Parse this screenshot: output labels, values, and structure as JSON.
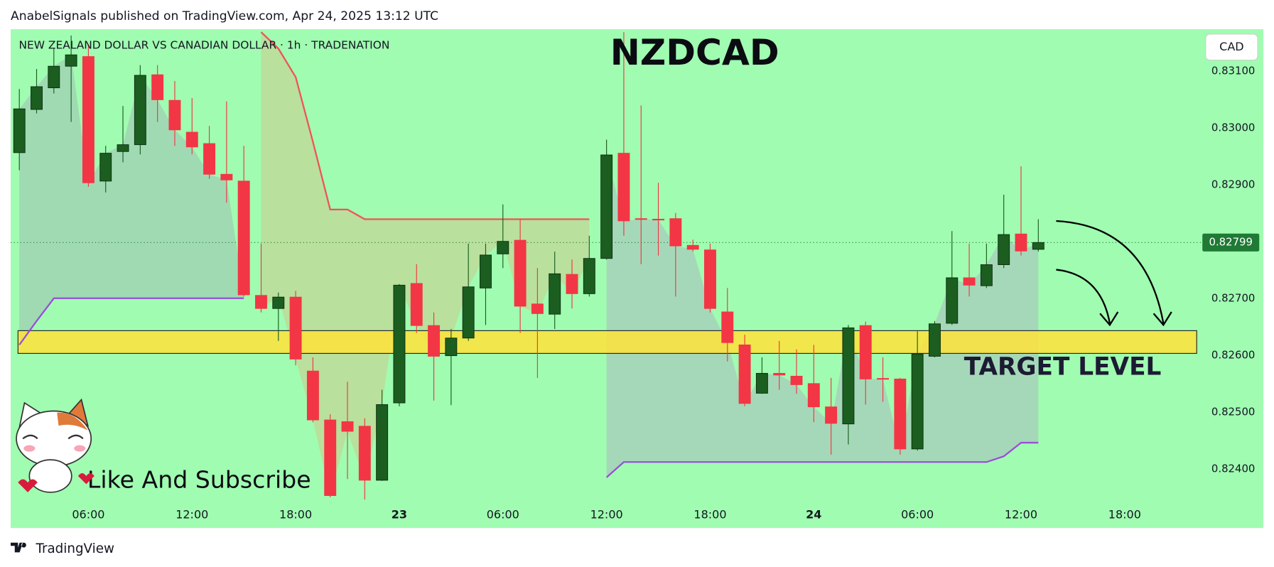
{
  "header": "AnabelSignals published on TradingView.com, Apr 24, 2025 13:12 UTC",
  "footer": "TradingView",
  "chart_data": {
    "type": "candlestick",
    "title": "NZDCAD",
    "subtitle": "NEW ZEALAND DOLLAR VS CANADIAN DOLLAR · 1h · TRADENATION",
    "currency": "CAD",
    "target_label": "TARGET LEVEL",
    "promo": "Like And Subscribe",
    "categories": [
      null,
      null,
      null,
      null,
      "06:00",
      null,
      null,
      null,
      null,
      null,
      "12:00",
      null,
      null,
      null,
      null,
      null,
      "18:00",
      null,
      null,
      null,
      null,
      null,
      "23",
      null,
      null,
      null,
      null,
      null,
      "06:00",
      null,
      null,
      null,
      null,
      null,
      "12:00",
      null,
      null,
      null,
      null,
      null,
      "18:00",
      null,
      null,
      null,
      null,
      null,
      "24",
      null,
      null,
      null,
      null,
      null,
      "06:00",
      null,
      null,
      null,
      null,
      null,
      "12:00",
      null,
      null,
      null,
      null,
      null,
      "18:00",
      null,
      null,
      null,
      null
    ],
    "open": [
      0.82957,
      0.83033,
      0.83071,
      0.83109,
      0.83126,
      0.82907,
      0.82959,
      0.82971,
      0.83094,
      0.83049,
      0.82993,
      0.82973,
      0.82919,
      0.82907,
      0.82706,
      0.82683,
      0.82703,
      0.82573,
      0.82487,
      0.82484,
      0.82476,
      0.82381,
      0.82517,
      0.82727,
      0.82653,
      0.826,
      0.82631,
      0.82719,
      0.82779,
      0.82803,
      0.82691,
      0.82673,
      0.82743,
      0.82709,
      0.82771,
      0.82956,
      0.82841,
      0.8284,
      0.82841,
      0.82794,
      0.82786,
      0.82677,
      0.82619,
      0.82534,
      0.82569,
      0.82564,
      0.82551,
      0.8251,
      0.8248,
      0.82653,
      0.8256,
      0.82559,
      0.82436,
      0.82599,
      0.82657,
      0.82737,
      0.82723,
      0.8276,
      0.82814,
      0.82787,
      null,
      null,
      null,
      null,
      null,
      null,
      null,
      null,
      null
    ],
    "high": [
      0.83069,
      0.83104,
      0.8314,
      0.83163,
      0.83147,
      0.82969,
      0.83039,
      0.83111,
      0.83111,
      0.83083,
      0.83053,
      0.83004,
      0.83047,
      0.82969,
      0.82797,
      0.82711,
      0.82714,
      0.82597,
      0.82497,
      0.82554,
      0.8249,
      0.8254,
      0.82726,
      0.82761,
      0.82676,
      0.82647,
      0.82797,
      0.82797,
      0.82866,
      0.8284,
      0.82754,
      0.82783,
      0.82769,
      0.82811,
      0.8298,
      0.83169,
      0.8304,
      0.82904,
      0.82851,
      0.82804,
      0.82797,
      0.82719,
      0.82637,
      0.82597,
      0.82626,
      0.82611,
      0.82619,
      0.82561,
      0.82654,
      0.8266,
      0.82597,
      0.82561,
      0.82643,
      0.82661,
      0.82819,
      0.82797,
      0.82797,
      0.82883,
      0.82933,
      0.8284,
      null,
      null,
      null,
      null,
      null,
      null,
      null,
      null,
      null
    ],
    "low": [
      0.82926,
      0.83026,
      0.83061,
      0.83011,
      0.82897,
      0.82887,
      0.8294,
      0.82954,
      0.83011,
      0.82969,
      0.82954,
      0.82911,
      0.82869,
      0.82704,
      0.82676,
      0.82626,
      0.82583,
      0.82483,
      0.82351,
      0.82383,
      0.82347,
      0.8238,
      0.82511,
      0.8264,
      0.82521,
      0.82513,
      0.82626,
      0.82654,
      0.82754,
      0.8264,
      0.82561,
      0.82647,
      0.82683,
      0.82704,
      0.82769,
      0.82811,
      0.82761,
      0.82776,
      0.82704,
      0.82783,
      0.82676,
      0.8259,
      0.82511,
      0.82533,
      0.8254,
      0.82533,
      0.82483,
      0.82426,
      0.82444,
      0.82514,
      0.82519,
      0.82426,
      0.82433,
      0.82597,
      0.82654,
      0.82704,
      0.82719,
      0.82754,
      0.82776,
      0.82783,
      null,
      null,
      null,
      null,
      null,
      null,
      null,
      null,
      null
    ],
    "close": [
      0.83034,
      0.83073,
      0.83109,
      0.83129,
      0.82904,
      0.82956,
      0.82971,
      0.83093,
      0.8305,
      0.82997,
      0.82967,
      0.82919,
      0.82909,
      0.82707,
      0.82683,
      0.82703,
      0.82594,
      0.82487,
      0.82354,
      0.82467,
      0.82381,
      0.82514,
      0.82724,
      0.82653,
      0.82599,
      0.82631,
      0.82721,
      0.82777,
      0.82801,
      0.82687,
      0.82674,
      0.82744,
      0.82709,
      0.82771,
      0.82953,
      0.82837,
      0.8284,
      0.82839,
      0.82793,
      0.82787,
      0.82683,
      0.82623,
      0.82516,
      0.82569,
      0.82566,
      0.82549,
      0.8251,
      0.82481,
      0.82649,
      0.82559,
      0.82559,
      0.82436,
      0.82603,
      0.82656,
      0.82737,
      0.82724,
      0.8276,
      0.82813,
      0.82784,
      0.82799,
      null,
      null,
      null,
      null,
      null,
      null,
      null,
      null,
      null
    ],
    "up_color": "#1b5e20",
    "down_color": "#f23645",
    "lines": [
      {
        "color": "#f0525a",
        "values": [
          null,
          null,
          null,
          null,
          null,
          null,
          null,
          null,
          null,
          null,
          null,
          null,
          null,
          null,
          0.83169,
          0.8314,
          0.8309,
          0.82976,
          0.82857,
          0.82857,
          0.8284,
          0.8284,
          0.8284,
          0.8284,
          0.8284,
          0.8284,
          0.8284,
          0.8284,
          0.8284,
          0.8284,
          0.8284,
          0.8284,
          0.8284,
          0.8284,
          null,
          null,
          null,
          null,
          null,
          null,
          null,
          null,
          null,
          null,
          null,
          null,
          null,
          null,
          null,
          null,
          null,
          null,
          null,
          null,
          null,
          null,
          null,
          null,
          null,
          null,
          null,
          null,
          null,
          null,
          null,
          null,
          null,
          null,
          null
        ]
      },
      {
        "color": "#9b4dd8",
        "values": [
          0.82619,
          0.82661,
          0.82701,
          0.82701,
          0.82701,
          0.82701,
          0.82701,
          0.82701,
          0.82701,
          0.82701,
          0.82701,
          0.82701,
          0.82701,
          0.82701,
          null,
          null,
          null,
          null,
          null,
          null,
          null,
          null,
          null,
          null,
          null,
          null,
          null,
          null,
          null,
          null,
          null,
          null,
          null,
          null,
          0.82386,
          0.82413,
          0.82413,
          0.82413,
          0.82413,
          0.82413,
          0.82413,
          0.82413,
          0.82413,
          0.82413,
          0.82413,
          0.82413,
          0.82413,
          0.82413,
          0.82413,
          0.82413,
          0.82413,
          0.82413,
          0.82413,
          0.82413,
          0.82413,
          0.82413,
          0.82413,
          0.82423,
          0.82447,
          0.82447,
          null,
          null,
          null,
          null,
          null,
          null,
          null,
          null,
          null
        ]
      }
    ],
    "target_zone": [
      0.82604,
      0.82644
    ],
    "target_color": "#ffe23a",
    "last_price": 0.82799,
    "last_price_color": "#1e7a34",
    "background": "#a0fcb1",
    "ylim": [
      0.82297,
      0.83174
    ],
    "yticks": [
      {
        "value": 0.824,
        "label": "0.82400"
      },
      {
        "value": 0.825,
        "label": "0.82500"
      },
      {
        "value": 0.826,
        "label": "0.82600"
      },
      {
        "value": 0.827,
        "label": "0.82700"
      },
      {
        "value": 0.828,
        "label": "0.82800"
      },
      {
        "value": 0.829,
        "label": "0.82900"
      },
      {
        "value": 0.83,
        "label": "0.83000"
      },
      {
        "value": 0.831,
        "label": "0.83100"
      }
    ]
  }
}
